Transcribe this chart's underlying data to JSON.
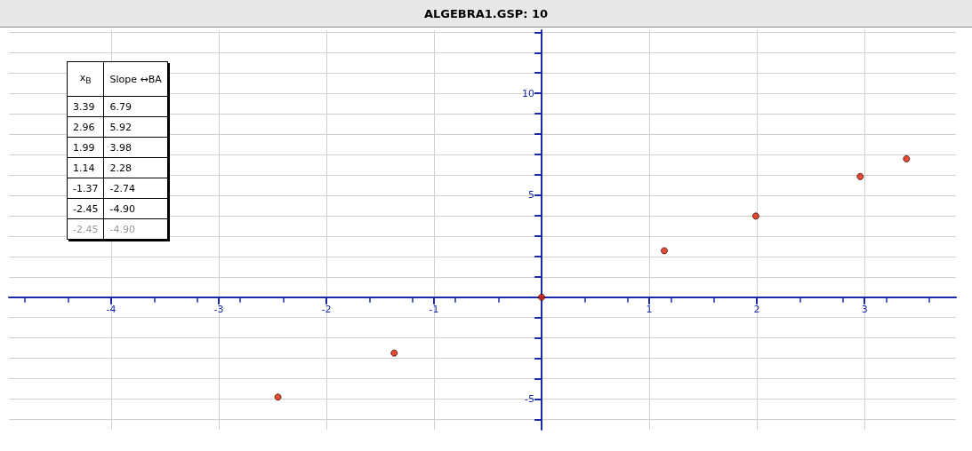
{
  "chart_data": {
    "type": "scatter",
    "title": "ALGEBRA1.GSP: 10",
    "xlabel": "x$_{B}$",
    "ylabel": "Slope ↔BA",
    "series": [
      {
        "color": "#dd2200",
        "x": [
          3.39,
          2.96,
          1.99,
          1.14,
          -1.37,
          -2.45
        ],
        "values": [
          6.79,
          5.92,
          3.98,
          2.28,
          -2.74,
          -4.9
        ]
      },
      {
        "color": "#dd2200",
        "x": [
          0
        ],
        "values": [
          0
        ]
      }
    ],
    "annotations": [
      "3.39",
      "6.79",
      "2.96",
      "5.92",
      "1.99",
      "3.98",
      "1.14",
      "2.28",
      "-1.37",
      "-2.74",
      "-2.45",
      "-4.90",
      "-2.45",
      "-4.90"
    ],
    "xlim": [
      -4.95,
      3.85
    ],
    "ylim": [
      -6.5,
      13.1
    ],
    "xticks": [
      -4,
      -3,
      -2,
      -1,
      1,
      2,
      3
    ],
    "yticks": [
      {
        "value": -6,
        "label": null
      },
      -5,
      {
        "value": -4,
        "label": null
      },
      {
        "value": -3,
        "label": null
      },
      {
        "value": -2,
        "label": null
      },
      {
        "value": -1,
        "label": null
      },
      {
        "value": 1,
        "label": null
      },
      {
        "value": 2,
        "label": null
      },
      {
        "value": 3,
        "label": null
      },
      {
        "value": 4,
        "label": null
      },
      5,
      {
        "value": 6,
        "label": null
      },
      {
        "value": 7,
        "label": null
      },
      {
        "value": 8,
        "label": null
      },
      {
        "value": 9,
        "label": null
      },
      10,
      {
        "value": 11,
        "label": null
      },
      {
        "value": 12,
        "label": null
      },
      {
        "value": 13,
        "label": null
      }
    ],
    "grid": true,
    "marker": "circle"
  }
}
